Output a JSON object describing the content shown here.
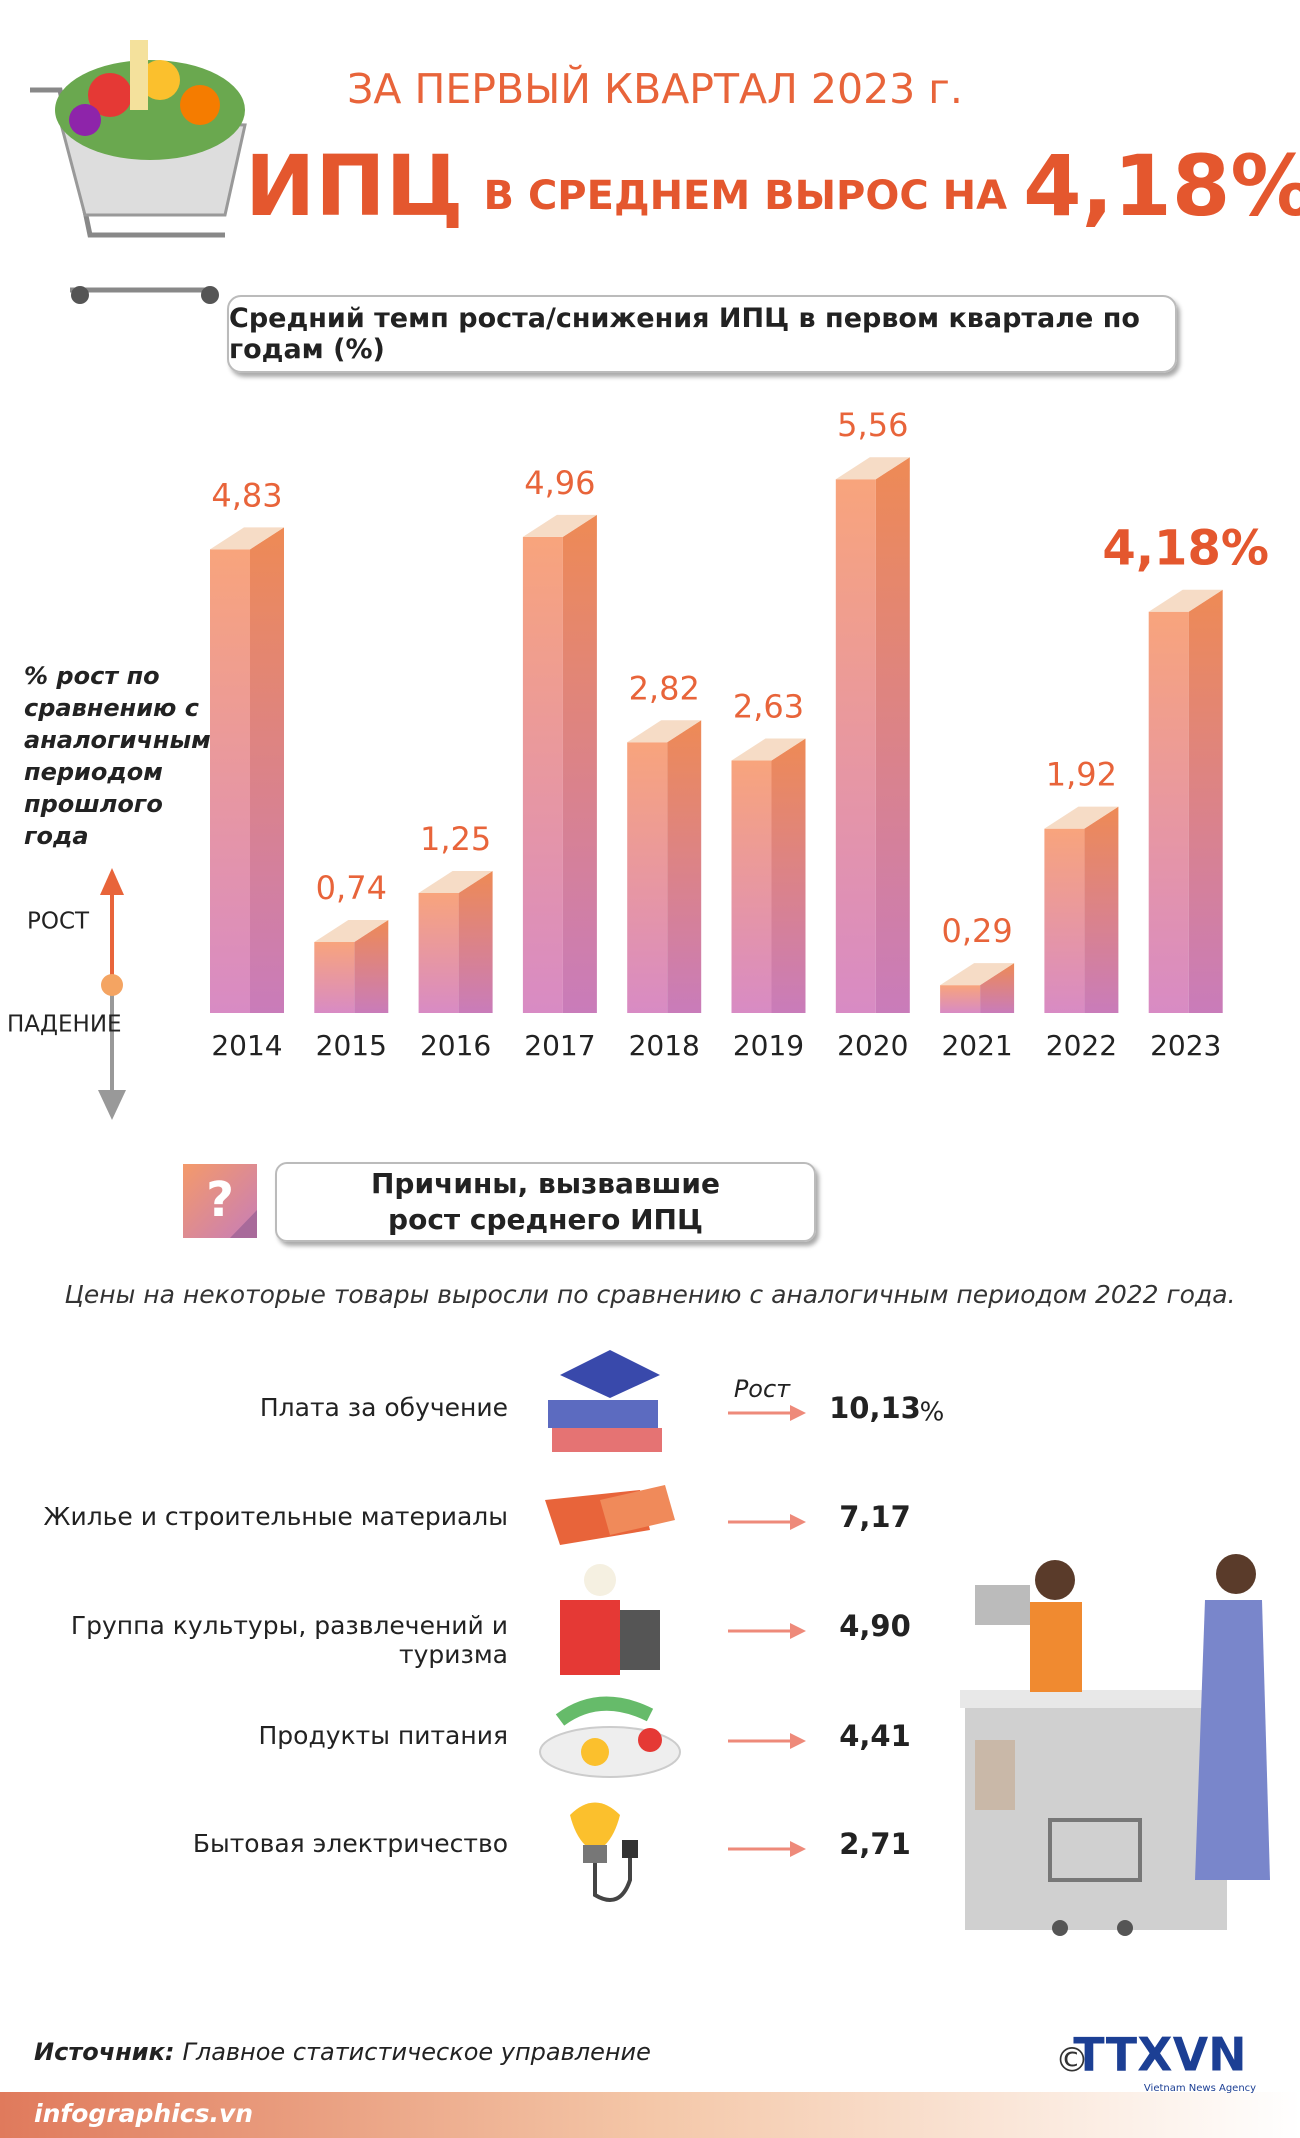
{
  "header": {
    "period": "ЗА ПЕРВЫЙ КВАРТАЛ 2023 г.",
    "cpi": "ИПЦ",
    "phrase": "В СРЕДНЕМ ВЫРОС НА",
    "value": "4,18%"
  },
  "chart_data": {
    "type": "bar",
    "title": "Средний темп роста/снижения ИПЦ в первом квартале по годам (%)",
    "y_note": "% рост по сравнению с аналогичным периодом прошлого года",
    "up_label": "РОСТ",
    "down_label": "ПАДЕНИЕ",
    "categories": [
      "2014",
      "2015",
      "2016",
      "2017",
      "2018",
      "2019",
      "2020",
      "2021",
      "2022",
      "2023"
    ],
    "values": [
      4.83,
      0.74,
      1.25,
      4.96,
      2.82,
      2.63,
      5.56,
      0.29,
      1.92,
      4.18
    ],
    "value_labels": [
      "4,83",
      "0,74",
      "1,25",
      "4,96",
      "2,82",
      "2,63",
      "5,56",
      "0,29",
      "1,92",
      "4,18%"
    ],
    "ylim": [
      0,
      6
    ],
    "color": "#f59a6c"
  },
  "reasons": {
    "title": "Причины, вызвавшие рост среднего ИПЦ",
    "icon": "?",
    "intro": "Цены на некоторые товары выросли по сравнению с аналогичным периодом 2022 года.",
    "growth_label": "Рост",
    "unit": "%",
    "items": [
      {
        "label": "Плата за обучение",
        "value": "10,13"
      },
      {
        "label": "Жилье и строительные материалы",
        "value": "7,17"
      },
      {
        "label": "Группа культуры, развлечений и туризма",
        "value": "4,90"
      },
      {
        "label": "Продукты питания",
        "value": "4,41"
      },
      {
        "label": "Бытовая электричество",
        "value": "2,71"
      }
    ]
  },
  "footer": {
    "source_label": "Источник:",
    "source": "Главное статистическое управление",
    "site": "infographics.vn",
    "copyright": "©",
    "agency": "TTXVN",
    "agency_full": "Vietnam News Agency"
  }
}
